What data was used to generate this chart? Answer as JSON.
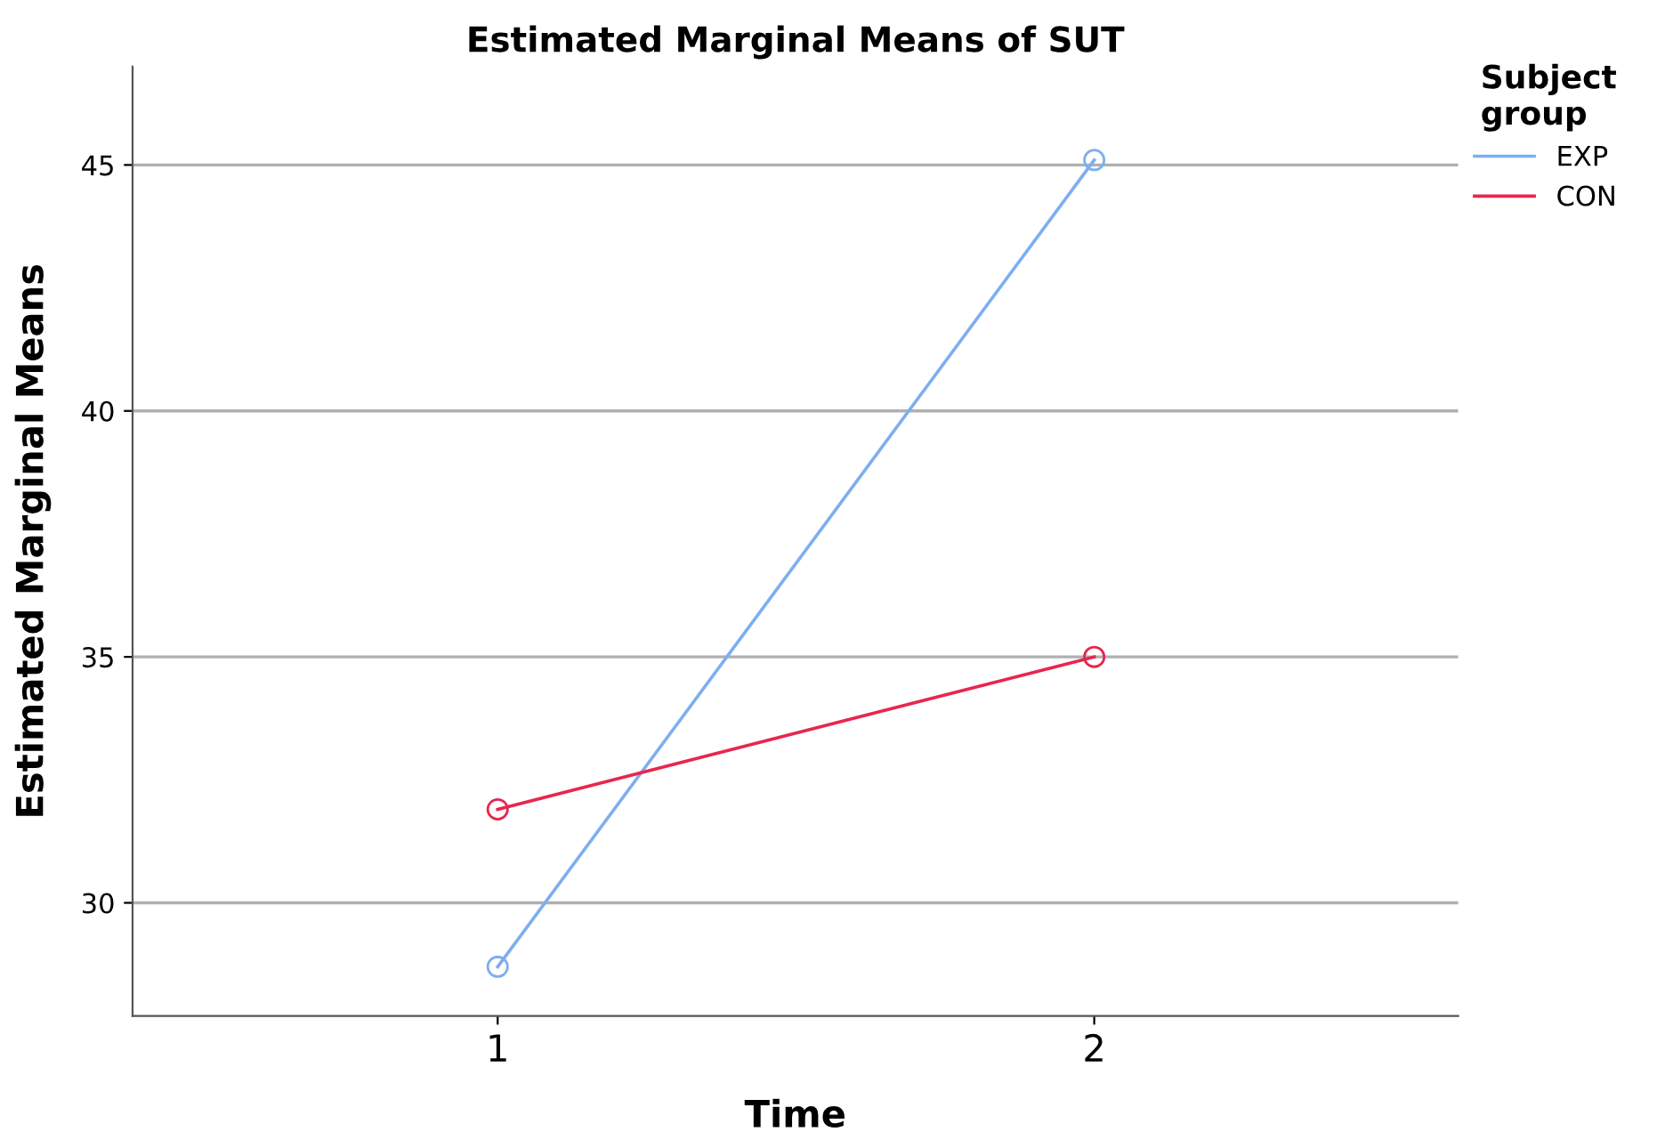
{
  "chart_data": {
    "type": "line",
    "title": "Estimated Marginal Means of SUT",
    "xlabel": "Time",
    "ylabel": "Estimated Marginal Means",
    "legend_title": "Subject\ngroup",
    "categories": [
      "1",
      "2"
    ],
    "series": [
      {
        "name": "EXP",
        "color": "#7eaef0",
        "values": [
          28.7,
          45.1
        ]
      },
      {
        "name": "CON",
        "color": "#e8264f",
        "values": [
          31.9,
          35.0
        ]
      }
    ],
    "ylim": [
      27.7,
      47
    ],
    "yticks": [
      30,
      35,
      40,
      45
    ],
    "grid": "y",
    "legend": "top right",
    "marker": "circle",
    "line_style": "solid"
  }
}
